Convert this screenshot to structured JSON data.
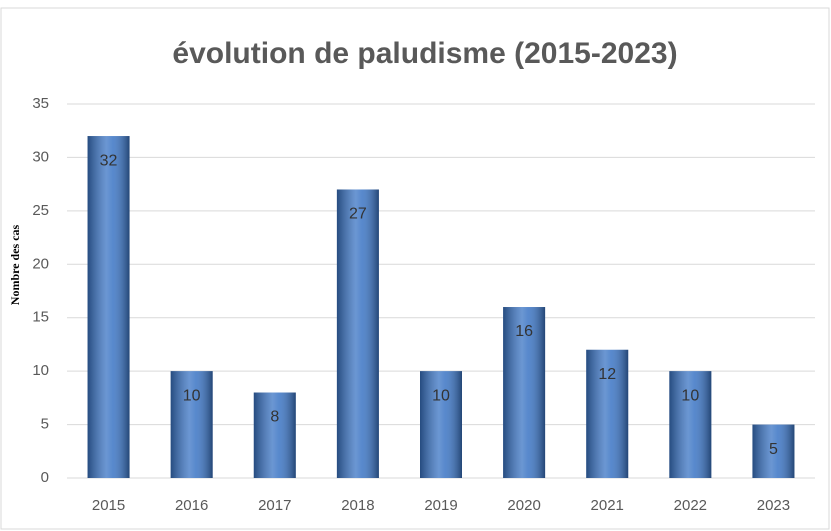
{
  "chart_data": {
    "type": "bar",
    "title": "évolution de paludisme (2015-2023)",
    "y_label": "Nombre des cas",
    "categories": [
      "2015",
      "2016",
      "2017",
      "2018",
      "2019",
      "2020",
      "2021",
      "2022",
      "2023"
    ],
    "values": [
      32,
      10,
      8,
      27,
      10,
      16,
      12,
      10,
      5
    ],
    "color": "#3a74c4",
    "ylim": [
      0,
      35
    ],
    "yticks": [
      0,
      5,
      10,
      15,
      20,
      25,
      30,
      35
    ],
    "grid": true
  }
}
